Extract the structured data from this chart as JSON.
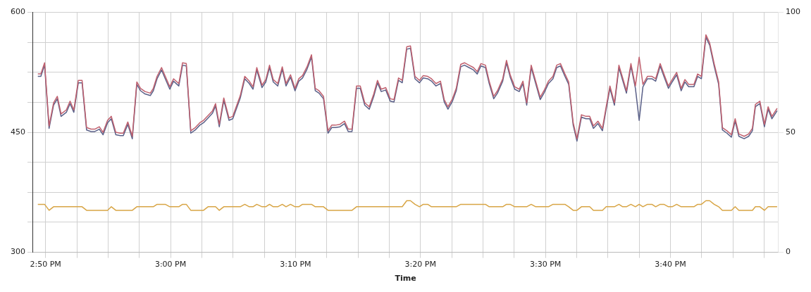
{
  "chart_data": {
    "type": "line",
    "xlabel": "Time",
    "grid": true,
    "x": [
      14.823,
      14.827,
      14.832,
      14.838,
      14.844,
      14.849,
      14.854,
      14.861,
      14.866,
      14.871,
      14.877,
      14.882,
      14.888,
      14.894,
      14.899,
      14.905,
      14.91,
      14.916,
      14.921,
      14.927,
      14.933,
      14.937,
      14.943,
      14.949,
      14.955,
      14.96,
      14.966,
      14.973,
      14.977,
      14.982,
      14.988,
      14.993,
      14.999,
      15.004,
      15.011,
      15.016,
      15.021,
      15.027,
      15.033,
      15.039,
      15.044,
      15.05,
      15.056,
      15.06,
      15.065,
      15.071,
      15.078,
      15.083,
      15.088,
      15.093,
      15.099,
      15.105,
      15.11,
      15.115,
      15.122,
      15.127,
      15.132,
      15.137,
      15.143,
      15.149,
      15.154,
      15.16,
      15.166,
      15.171,
      15.176,
      15.182,
      15.188,
      15.193,
      15.198,
      15.204,
      15.21,
      15.215,
      15.22,
      15.226,
      15.232,
      15.237,
      15.242,
      15.248,
      15.253,
      15.259,
      15.265,
      15.271,
      15.276,
      15.281,
      15.287,
      15.293,
      15.298,
      15.304,
      15.309,
      15.315,
      15.32,
      15.326,
      15.332,
      15.337,
      15.343,
      15.348,
      15.354,
      15.36,
      15.365,
      15.37,
      15.376,
      15.381,
      15.387,
      15.392,
      15.398,
      15.404,
      15.409,
      15.414,
      15.42,
      15.425,
      15.431,
      15.436,
      15.443,
      15.448,
      15.453,
      15.459,
      15.465,
      15.47,
      15.475,
      15.481,
      15.487,
      15.493,
      15.498,
      15.504,
      15.51,
      15.515,
      15.52,
      15.526,
      15.531,
      15.537,
      15.542,
      15.548,
      15.554,
      15.559,
      15.564,
      15.57,
      15.576,
      15.581,
      15.586,
      15.592,
      15.598,
      15.603,
      15.608,
      15.614,
      15.62,
      15.625,
      15.63,
      15.636,
      15.642,
      15.647,
      15.653,
      15.658,
      15.664,
      15.669,
      15.675,
      15.681,
      15.686,
      15.691,
      15.698,
      15.703,
      15.708,
      15.714,
      15.719,
      15.725,
      15.731,
      15.736,
      15.742,
      15.748,
      15.753,
      15.758,
      15.765,
      15.771,
      15.776,
      15.78,
      15.786,
      15.792,
      15.797,
      15.802,
      15.809
    ],
    "series": [
      {
        "color": "#c0606e",
        "values": [
          523,
          523,
          537,
          458,
          487,
          495,
          473,
          478,
          489,
          478,
          515,
          515,
          456,
          454,
          454,
          457,
          450,
          465,
          470,
          450,
          449,
          449,
          463,
          445,
          513,
          505,
          501,
          499,
          505,
          520,
          531,
          520,
          507,
          517,
          511,
          537,
          536,
          452,
          456,
          462,
          465,
          471,
          477,
          486,
          460,
          493,
          468,
          470,
          483,
          496,
          520,
          514,
          507,
          531,
          509,
          516,
          534,
          516,
          511,
          532,
          511,
          522,
          505,
          517,
          521,
          532,
          547,
          505,
          502,
          495,
          452,
          459,
          459,
          460,
          464,
          454,
          454,
          508,
          508,
          487,
          482,
          498,
          515,
          504,
          506,
          492,
          491,
          518,
          515,
          557,
          558,
          520,
          515,
          521,
          520,
          517,
          511,
          514,
          491,
          482,
          492,
          505,
          535,
          537,
          534,
          531,
          526,
          536,
          534,
          514,
          495,
          502,
          517,
          540,
          522,
          507,
          504,
          514,
          487,
          534,
          514,
          494,
          502,
          514,
          520,
          534,
          536,
          523,
          513,
          462,
          442,
          472,
          470,
          470,
          458,
          464,
          455,
          482,
          508,
          487,
          534,
          518,
          502,
          536,
          508,
          544,
          510,
          520,
          520,
          517,
          536,
          523,
          508,
          516,
          525,
          505,
          516,
          510,
          510,
          523,
          520,
          572,
          562,
          536,
          513,
          456,
          452,
          447,
          467,
          448,
          445,
          448,
          455,
          485,
          489,
          460,
          482,
          470,
          480
        ]
      },
      {
        "color": "#5a6088",
        "values": [
          520,
          520,
          534,
          455,
          484,
          492,
          470,
          475,
          486,
          475,
          512,
          512,
          453,
          451,
          451,
          454,
          447,
          462,
          467,
          447,
          446,
          446,
          460,
          442,
          510,
          502,
          498,
          496,
          502,
          517,
          528,
          517,
          504,
          514,
          508,
          534,
          533,
          449,
          453,
          459,
          462,
          468,
          474,
          483,
          457,
          490,
          465,
          467,
          480,
          493,
          517,
          511,
          504,
          528,
          506,
          513,
          531,
          513,
          508,
          529,
          508,
          519,
          502,
          514,
          518,
          529,
          544,
          502,
          499,
          492,
          449,
          456,
          456,
          457,
          461,
          451,
          451,
          505,
          505,
          484,
          479,
          495,
          512,
          501,
          503,
          489,
          488,
          515,
          512,
          554,
          555,
          517,
          512,
          518,
          517,
          514,
          508,
          511,
          488,
          479,
          489,
          502,
          532,
          534,
          531,
          528,
          523,
          533,
          531,
          511,
          492,
          499,
          514,
          537,
          519,
          504,
          501,
          511,
          484,
          531,
          511,
          491,
          499,
          511,
          517,
          531,
          533,
          520,
          510,
          459,
          439,
          469,
          467,
          467,
          455,
          461,
          452,
          479,
          505,
          484,
          531,
          515,
          499,
          533,
          505,
          465,
          507,
          517,
          517,
          514,
          533,
          520,
          505,
          513,
          522,
          502,
          513,
          507,
          507,
          520,
          517,
          569,
          559,
          533,
          510,
          453,
          449,
          444,
          464,
          445,
          442,
          445,
          452,
          482,
          486,
          457,
          479,
          467,
          477
        ]
      },
      {
        "color": "#d8a545",
        "axis": "y2",
        "values": [
          20,
          20,
          20,
          17.5,
          19,
          19,
          19,
          19,
          19,
          19,
          19,
          19,
          17.5,
          17.5,
          17.5,
          17.5,
          17.5,
          17.5,
          19,
          17.5,
          17.5,
          17.5,
          17.5,
          17.5,
          19,
          19,
          19,
          19,
          19,
          20,
          20,
          20,
          19,
          19,
          19,
          20,
          20,
          17.5,
          17.5,
          17.5,
          17.5,
          19,
          19,
          19,
          17.5,
          19,
          19,
          19,
          19,
          19,
          20,
          19,
          19,
          20,
          19,
          19,
          20,
          19,
          19,
          20,
          19,
          20,
          19,
          19,
          20,
          20,
          20,
          19,
          19,
          19,
          17.5,
          17.5,
          17.5,
          17.5,
          17.5,
          17.5,
          17.5,
          19,
          19,
          19,
          19,
          19,
          19,
          19,
          19,
          19,
          19,
          19,
          19,
          21.5,
          21.5,
          20,
          19,
          20,
          20,
          19,
          19,
          19,
          19,
          19,
          19,
          19,
          20,
          20,
          20,
          20,
          20,
          20,
          20,
          19,
          19,
          19,
          19,
          20,
          20,
          19,
          19,
          19,
          19,
          20,
          19,
          19,
          19,
          19,
          20,
          20,
          20,
          20,
          19,
          17.5,
          17.5,
          19,
          19,
          19,
          17.5,
          17.5,
          17.5,
          19,
          19,
          19,
          20,
          19,
          19,
          20,
          19,
          20,
          19,
          20,
          20,
          19,
          20,
          20,
          19,
          19,
          20,
          19,
          19,
          19,
          19,
          20,
          20,
          21.5,
          21.5,
          20,
          19,
          17.5,
          17.5,
          17.5,
          19,
          17.5,
          17.5,
          17.5,
          17.5,
          19,
          19,
          17.5,
          19,
          19,
          19
        ]
      }
    ],
    "xlim": [
      14.8167,
      15.81
    ],
    "xticks": [
      {
        "value": 14.8333,
        "label": "2:50 PM"
      },
      {
        "value": 14.875,
        "label": null
      },
      {
        "value": 14.9167,
        "label": null
      },
      {
        "value": 14.9583,
        "label": null
      },
      {
        "value": 15,
        "label": "3:00 PM"
      },
      {
        "value": 15.0417,
        "label": null
      },
      {
        "value": 15.0833,
        "label": null
      },
      {
        "value": 15.125,
        "label": null
      },
      {
        "value": 15.1667,
        "label": "3:10 PM"
      },
      {
        "value": 15.2083,
        "label": null
      },
      {
        "value": 15.25,
        "label": null
      },
      {
        "value": 15.2917,
        "label": null
      },
      {
        "value": 15.3333,
        "label": "3:20 PM"
      },
      {
        "value": 15.375,
        "label": null
      },
      {
        "value": 15.4167,
        "label": null
      },
      {
        "value": 15.4583,
        "label": null
      },
      {
        "value": 15.5,
        "label": "3:30 PM"
      },
      {
        "value": 15.5417,
        "label": null
      },
      {
        "value": 15.5833,
        "label": null
      },
      {
        "value": 15.625,
        "label": null
      },
      {
        "value": 15.6667,
        "label": "3:40 PM"
      },
      {
        "value": 15.7083,
        "label": null
      },
      {
        "value": 15.75,
        "label": null
      },
      {
        "value": 15.7917,
        "label": null
      }
    ],
    "ylim": [
      300,
      600
    ],
    "yticks": [
      300,
      {
        "value": 337.5,
        "label": null
      },
      {
        "value": 375,
        "label": null
      },
      {
        "value": 412.5,
        "label": null
      },
      450,
      {
        "value": 487.5,
        "label": null
      },
      {
        "value": 525,
        "label": null
      },
      {
        "value": 562.5,
        "label": null
      },
      600
    ],
    "y2lim": [
      0,
      100
    ],
    "y2ticks": [
      0,
      50,
      100
    ]
  }
}
